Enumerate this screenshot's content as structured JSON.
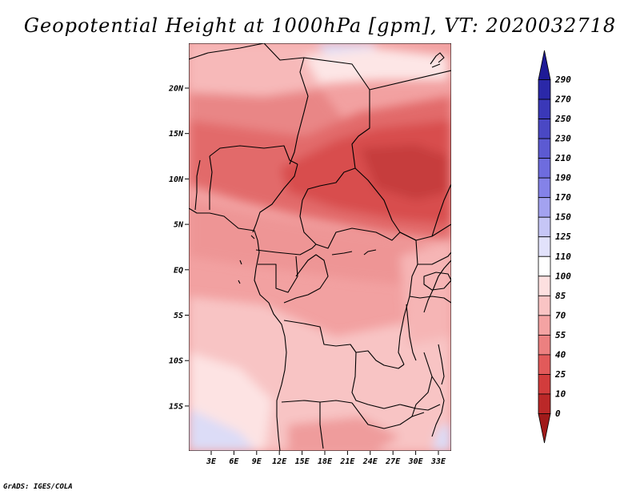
{
  "title": "Geopotential Height at 1000hPa [gpm], VT: 2020032718",
  "footer": "GrADS: IGES/COLA",
  "map": {
    "lat_labels": [
      "20N",
      "15N",
      "10N",
      "5N",
      "EQ",
      "5S",
      "10S",
      "15S"
    ],
    "lon_labels": [
      "3E",
      "6E",
      "9E",
      "12E",
      "15E",
      "18E",
      "21E",
      "24E",
      "27E",
      "30E",
      "33E"
    ]
  },
  "colorbar": {
    "levels": [
      "290",
      "270",
      "250",
      "230",
      "210",
      "190",
      "170",
      "150",
      "125",
      "110",
      "100",
      "85",
      "70",
      "55",
      "40",
      "25",
      "10",
      "0"
    ],
    "colors": [
      "#1e1a96",
      "#2a28a8",
      "#3a38b8",
      "#4a48c4",
      "#5c5ad2",
      "#6e6cde",
      "#8482e8",
      "#a3a2f0",
      "#c6c6f6",
      "#e2e2fb",
      "#ffffff",
      "#fde0e0",
      "#f9c4c4",
      "#f4a3a3",
      "#ec8080",
      "#e25a5a",
      "#d23c3c",
      "#bb2828",
      "#a01a1a"
    ]
  }
}
